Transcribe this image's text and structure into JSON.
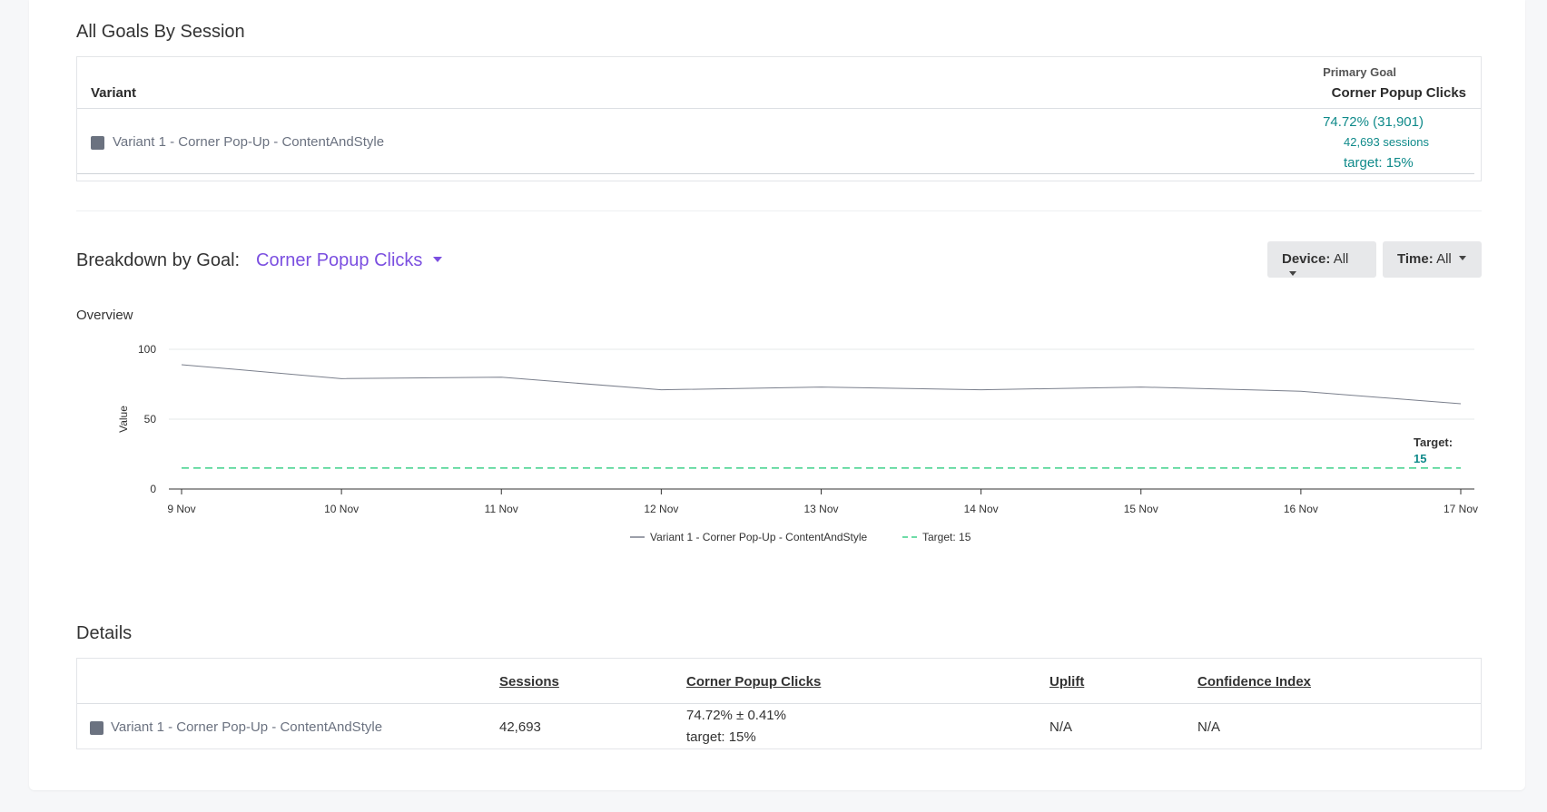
{
  "goals_section": {
    "title": "All Goals By Session",
    "col_variant": "Variant",
    "primary_goal_small": "Primary Goal",
    "primary_goal_name": "Corner Popup Clicks",
    "row": {
      "variant": "Variant 1 - Corner Pop-Up - ContentAndStyle",
      "rate": "74.72% (31,901)",
      "sessions": "42,693 sessions",
      "target": "target: 15%"
    }
  },
  "breakdown": {
    "label": "Breakdown by Goal:",
    "goal_selected": "Corner Popup Clicks",
    "device_label": "Device:",
    "device_value": "All",
    "time_label": "Time:",
    "time_value": "All"
  },
  "overview": {
    "label": "Overview"
  },
  "chart_data": {
    "type": "line",
    "x": [
      "9 Nov",
      "10 Nov",
      "11 Nov",
      "12 Nov",
      "13 Nov",
      "14 Nov",
      "15 Nov",
      "16 Nov",
      "17 Nov"
    ],
    "series": [
      {
        "name": "Variant 1 - Corner Pop-Up - ContentAndStyle",
        "values": [
          89,
          79,
          80,
          71,
          73,
          71,
          73,
          70,
          61
        ],
        "color": "#7a7f8c"
      },
      {
        "name": "Target: 15",
        "values": [
          15,
          15,
          15,
          15,
          15,
          15,
          15,
          15,
          15
        ],
        "color": "#3ed18a",
        "dashed": true
      }
    ],
    "ylabel": "Value",
    "ylim": [
      0,
      100
    ],
    "yticks": [
      "0",
      "50",
      "100"
    ],
    "grid": true,
    "legend": "bottom",
    "annotation": {
      "label": "Target:",
      "value": "15"
    }
  },
  "details": {
    "title": "Details",
    "headers": [
      "Sessions",
      "Corner Popup Clicks",
      "Uplift",
      "Confidence Index"
    ],
    "row": {
      "variant": "Variant 1 - Corner Pop-Up - ContentAndStyle",
      "sessions": "42,693",
      "clicks": "74.72% ± 0.41%",
      "clicks_target": "target: 15%",
      "uplift": "N/A",
      "confidence": "N/A"
    }
  },
  "colors": {
    "accent_purple": "#7b4fe0",
    "teal": "#0f8a8a",
    "swatch": "#6b7280"
  }
}
